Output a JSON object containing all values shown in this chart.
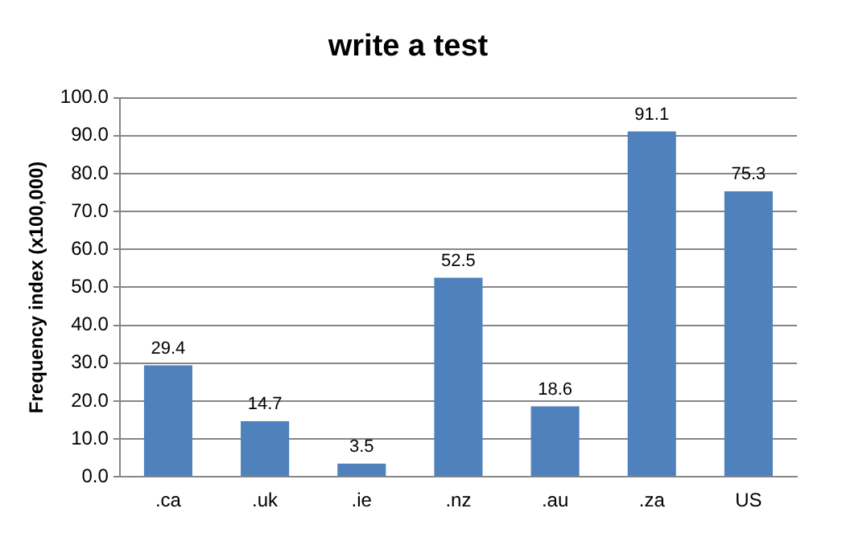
{
  "chart_data": {
    "type": "bar",
    "title": "write a test",
    "ylabel": "Frequency index (x100,000)",
    "categories": [
      ".ca",
      ".uk",
      ".ie",
      ".nz",
      ".au",
      ".za",
      "US"
    ],
    "values": [
      29.4,
      14.7,
      3.5,
      52.5,
      18.6,
      91.1,
      75.3
    ],
    "color": "#4f81bd",
    "data_labels": true,
    "grid": "y",
    "legend": false,
    "ylim": [
      0,
      100
    ],
    "yticks": [
      {
        "value": 0,
        "label": "0.0"
      },
      {
        "value": 10,
        "label": "10.0"
      },
      {
        "value": 20,
        "label": "20.0"
      },
      {
        "value": 30,
        "label": "30.0"
      },
      {
        "value": 40,
        "label": "40.0"
      },
      {
        "value": 50,
        "label": "50.0"
      },
      {
        "value": 60,
        "label": "60.0"
      },
      {
        "value": 70,
        "label": "70.0"
      },
      {
        "value": 80,
        "label": "80.0"
      },
      {
        "value": 90,
        "label": "90.0"
      },
      {
        "value": 100,
        "label": "100.0"
      }
    ]
  }
}
